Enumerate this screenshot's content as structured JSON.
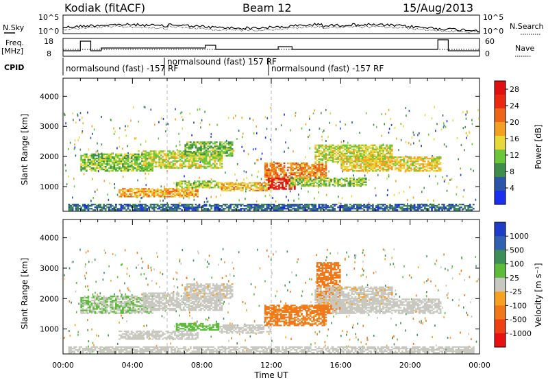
{
  "header": {
    "station": "Kodiak (fitACF)",
    "beam": "Beam 12",
    "date": "15/Aug/2013"
  },
  "noise_panel": {
    "left_label": "N.Sky",
    "right_label": "N.Search",
    "left_ticks": [
      "10^5",
      "10^0"
    ],
    "right_ticks": [
      "10^5",
      "10^0"
    ]
  },
  "freq_panel": {
    "left_label_1": "Freq.",
    "left_label_2": "[MHz]",
    "right_label": "Nave",
    "left_ticks": [
      "18",
      "8"
    ],
    "right_ticks": [
      "60",
      "0"
    ]
  },
  "cpid": {
    "label": "CPID",
    "segments": [
      {
        "text": "normalsound (fast) -157 RF",
        "start_h": 0
      },
      {
        "text": "normalsound (fast) 157 RF",
        "start_h": 6
      },
      {
        "text": "normalsound (fast) -157 RF",
        "start_h": 12
      }
    ]
  },
  "colors": {
    "power": [
      "#1a2ff0",
      "#2a55a8",
      "#3e8e4a",
      "#6cc63a",
      "#e8d838",
      "#f3a020",
      "#ee6418",
      "#ea2a10",
      "#e01010"
    ],
    "velocity": [
      "#1f3cc8",
      "#3060b0",
      "#3e8e58",
      "#5cbc3a",
      "#c8c8c0",
      "#f8a020",
      "#f07818",
      "#ee4012",
      "#e81010"
    ]
  },
  "chart_data": [
    {
      "type": "heatmap",
      "name": "power",
      "ylabel": "Slant Range [km]",
      "xlabel": "",
      "yticks": [
        "1000",
        "2000",
        "3000",
        "4000"
      ],
      "xlim_h": [
        0,
        24
      ],
      "ylim_km": [
        180,
        4600
      ],
      "colorbar": {
        "label": "Power [dB]",
        "ticks": [
          "4",
          "8",
          "12",
          "16",
          "20",
          "24",
          "28"
        ],
        "range": [
          0,
          30
        ]
      },
      "regions": [
        {
          "t0": 1.0,
          "t1": 5.2,
          "r0": 1500,
          "r1": 2100,
          "value": 12
        },
        {
          "t0": 4.6,
          "t1": 9.2,
          "r0": 1600,
          "r1": 2200,
          "value": 14
        },
        {
          "t0": 7.0,
          "t1": 9.8,
          "r0": 2000,
          "r1": 2500,
          "value": 11
        },
        {
          "t0": 3.2,
          "t1": 7.8,
          "r0": 650,
          "r1": 950,
          "value": 18
        },
        {
          "t0": 6.5,
          "t1": 9.0,
          "r0": 950,
          "r1": 1200,
          "value": 13
        },
        {
          "t0": 9.0,
          "t1": 12.0,
          "r0": 850,
          "r1": 1150,
          "value": 17
        },
        {
          "t0": 11.6,
          "t1": 15.2,
          "r0": 1200,
          "r1": 1800,
          "value": 20
        },
        {
          "t0": 11.8,
          "t1": 13.4,
          "r0": 900,
          "r1": 1300,
          "value": 27
        },
        {
          "t0": 14.5,
          "t1": 19.0,
          "r0": 1800,
          "r1": 2400,
          "value": 14
        },
        {
          "t0": 16.0,
          "t1": 21.8,
          "r0": 1500,
          "r1": 2000,
          "value": 16
        },
        {
          "t0": 13.0,
          "t1": 17.5,
          "r0": 1000,
          "r1": 1300,
          "value": 12
        },
        {
          "t0": 0.3,
          "t1": 23.7,
          "r0": 200,
          "r1": 430,
          "value": 6
        }
      ]
    },
    {
      "type": "heatmap",
      "name": "velocity",
      "ylabel": "Slant Range [km]",
      "xlabel": "Time UT",
      "yticks": [
        "1000",
        "2000",
        "3000",
        "4000"
      ],
      "xticks": [
        "00:00",
        "04:00",
        "08:00",
        "12:00",
        "16:00",
        "20:00",
        "00:00"
      ],
      "xlim_h": [
        0,
        24
      ],
      "ylim_km": [
        180,
        4600
      ],
      "colorbar": {
        "label": "Velocity [m s⁻¹]",
        "ticks": [
          "1000",
          "500",
          "100",
          "25",
          "-25",
          "-100",
          "-500",
          "-1000"
        ]
      },
      "regions": [
        {
          "t0": 1.0,
          "t1": 5.2,
          "r0": 1500,
          "r1": 2100,
          "value": 25
        },
        {
          "t0": 4.6,
          "t1": 9.2,
          "r0": 1600,
          "r1": 2200,
          "value": 0
        },
        {
          "t0": 7.0,
          "t1": 9.8,
          "r0": 2000,
          "r1": 2500,
          "value": -10
        },
        {
          "t0": 3.2,
          "t1": 7.8,
          "r0": 650,
          "r1": 950,
          "value": 0
        },
        {
          "t0": 6.5,
          "t1": 9.0,
          "r0": 950,
          "r1": 1200,
          "value": 60
        },
        {
          "t0": 9.0,
          "t1": 12.0,
          "r0": 850,
          "r1": 1150,
          "value": 0
        },
        {
          "t0": 11.6,
          "t1": 15.2,
          "r0": 1100,
          "r1": 1800,
          "value": -180
        },
        {
          "t0": 14.6,
          "t1": 16.0,
          "r0": 1500,
          "r1": 3200,
          "value": -400
        },
        {
          "t0": 15.5,
          "t1": 21.8,
          "r0": 1500,
          "r1": 2000,
          "value": 0
        },
        {
          "t0": 14.5,
          "t1": 19.0,
          "r0": 1800,
          "r1": 2400,
          "value": -10
        },
        {
          "t0": 0.3,
          "t1": 23.7,
          "r0": 200,
          "r1": 430,
          "value": 0
        }
      ]
    }
  ]
}
